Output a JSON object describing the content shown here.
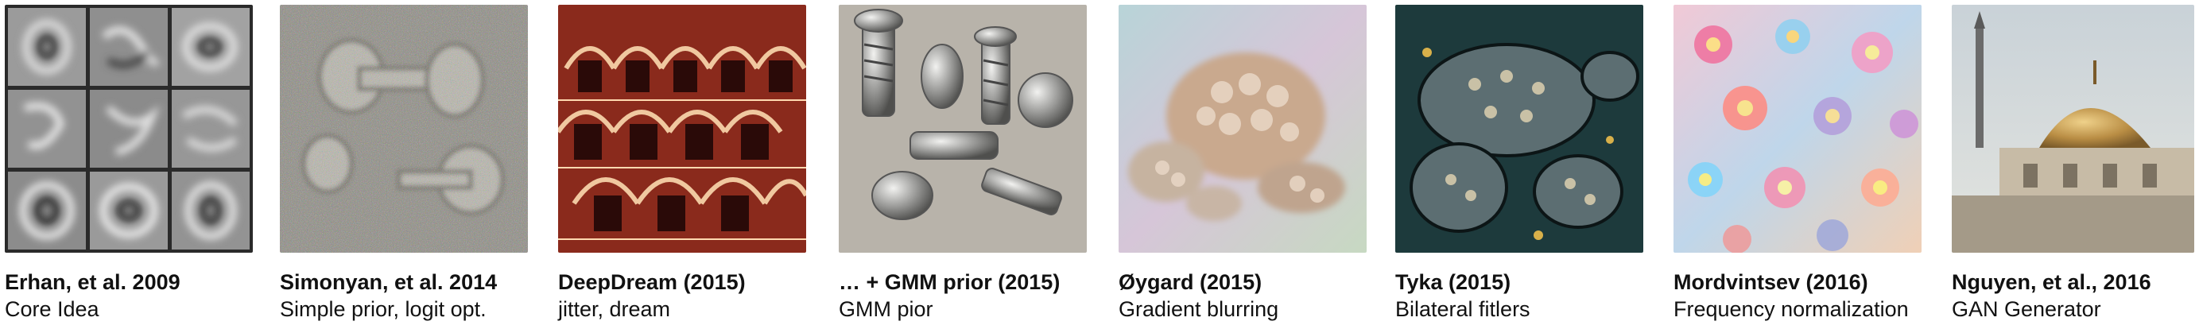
{
  "panels": [
    {
      "title": "Erhan, et al. 2009",
      "subtitle": "Core Idea",
      "image": "grayscale-3x3-feature-grid"
    },
    {
      "title": "Simonyan, et al. 2014",
      "subtitle": "Simple prior, logit opt.",
      "image": "noisy-dumbbell-visualization"
    },
    {
      "title": "DeepDream (2015)",
      "subtitle": "jitter, dream",
      "image": "red-arched-building-dream"
    },
    {
      "title": "… + GMM prior (2015)",
      "subtitle": "GMM pior",
      "image": "metallic-screws-visualization"
    },
    {
      "title": "Øygard (2015)",
      "subtitle": "Gradient blurring",
      "image": "pastel-turtle-visualization"
    },
    {
      "title": "Tyka (2015)",
      "subtitle": "Bilateral fitlers",
      "image": "dark-turtle-visualization"
    },
    {
      "title": "Mordvintsev (2016)",
      "subtitle": "Frequency normalization",
      "image": "colorful-flowers-visualization"
    },
    {
      "title": "Nguyen, et al., 2016",
      "subtitle": "GAN Generator",
      "image": "domed-mosque-visualization"
    }
  ]
}
